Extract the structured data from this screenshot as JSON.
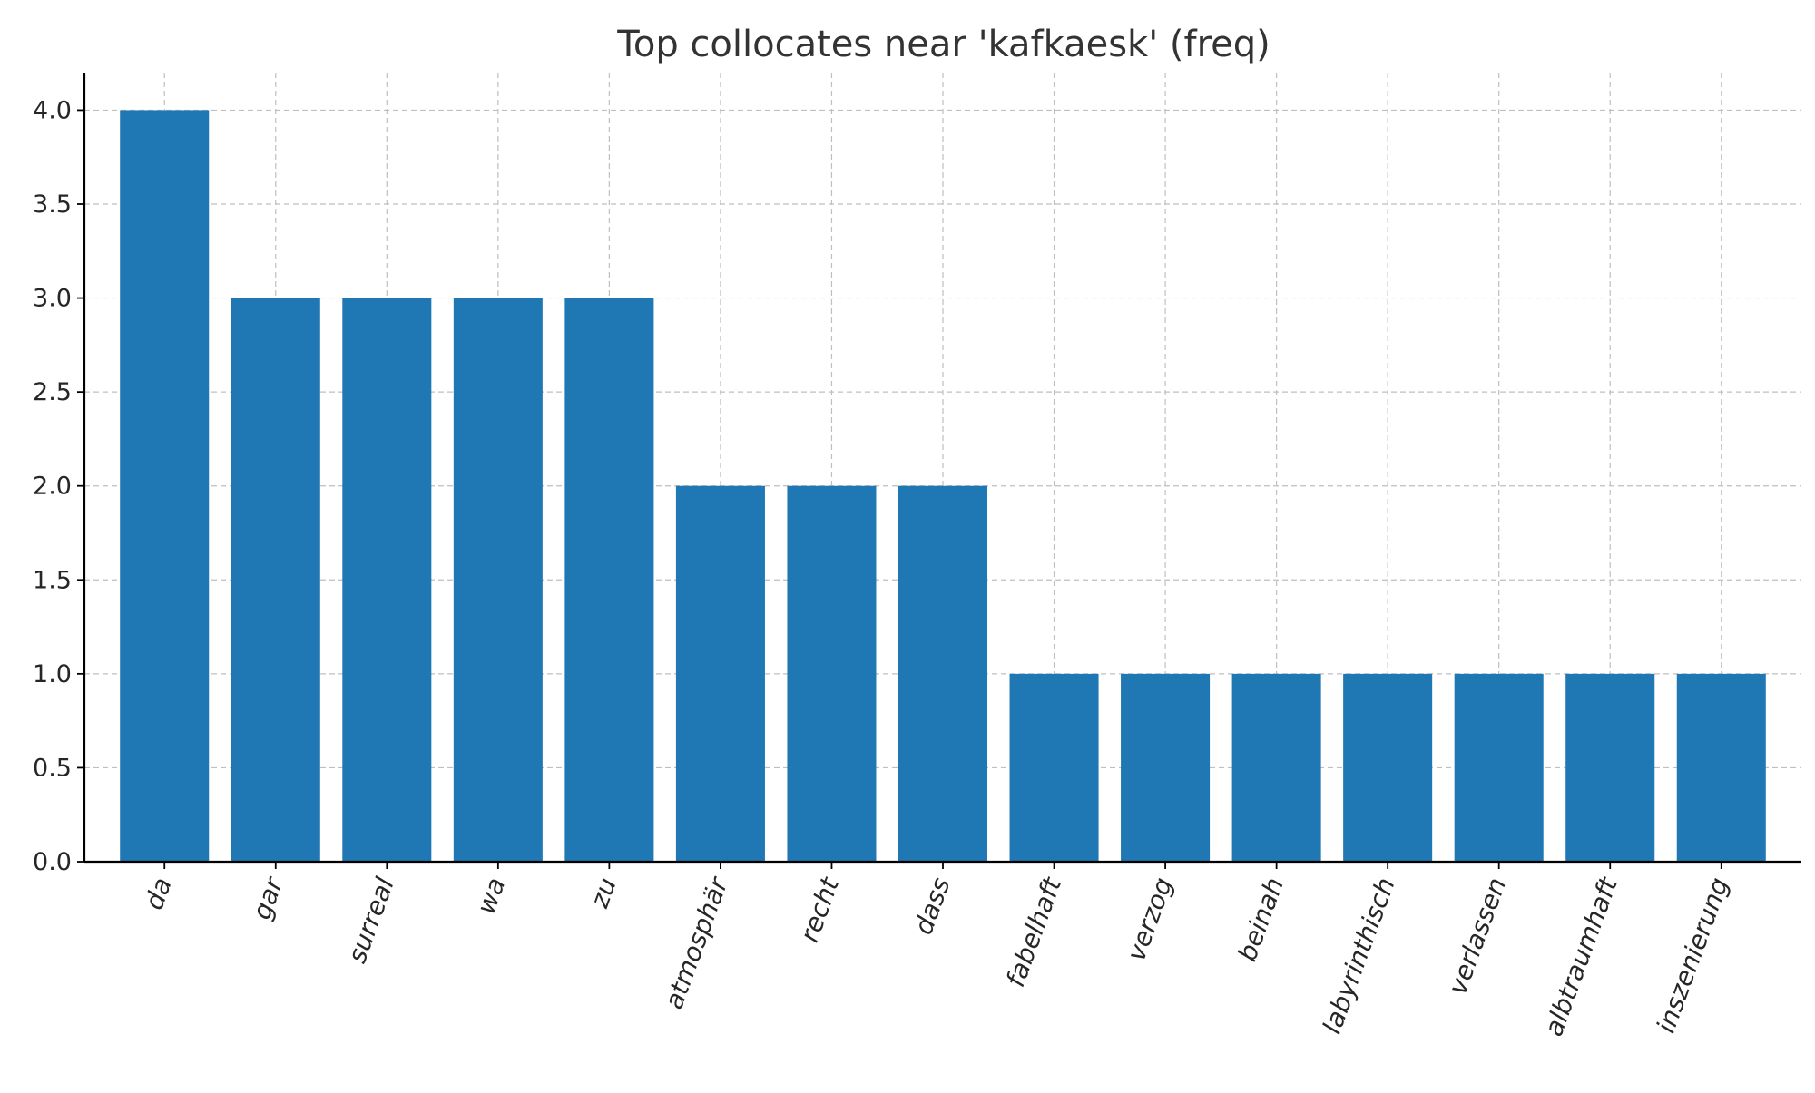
{
  "chart_data": {
    "type": "bar",
    "title": "Top collocates near 'kafkaesk' (freq)",
    "xlabel": "",
    "ylabel": "",
    "categories": [
      "da",
      "gar",
      "surreal",
      "wa",
      "zu",
      "atmosphär",
      "recht",
      "dass",
      "fabelhaft",
      "verzog",
      "beinah",
      "labyrinthisch",
      "verlassen",
      "albtraumhaft",
      "inszenierung"
    ],
    "values": [
      4,
      3,
      3,
      3,
      3,
      2,
      2,
      2,
      1,
      1,
      1,
      1,
      1,
      1,
      1
    ],
    "ylim": [
      0,
      4.2
    ],
    "yticks": [
      "0.0",
      "0.5",
      "1.0",
      "1.5",
      "2.0",
      "2.5",
      "3.0",
      "3.5",
      "4.0"
    ],
    "grid": true,
    "legend": "none",
    "bar_color": "#1f77b4"
  }
}
